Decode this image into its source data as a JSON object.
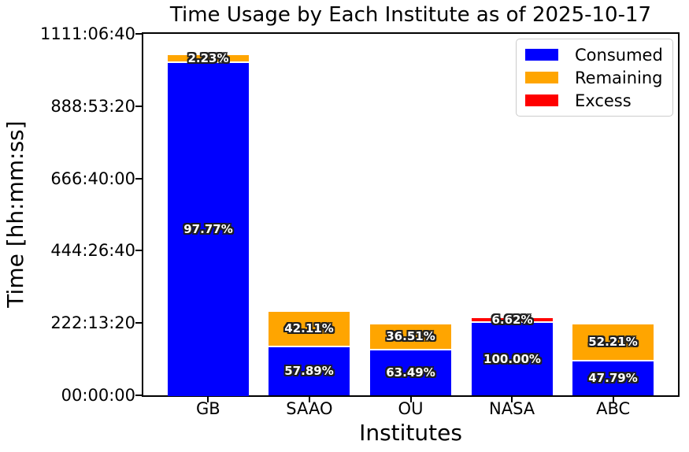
{
  "chart_data": {
    "type": "bar",
    "stacked": true,
    "title": "Time Usage by Each Institute as of 2025-10-17",
    "xlabel": "Institutes",
    "ylabel": "Time [hh:mm:ss]",
    "categories": [
      "GB",
      "SAAO",
      "OU",
      "NASA",
      "ABC"
    ],
    "unit": "seconds",
    "ylim": [
      0,
      4000000
    ],
    "grid": false,
    "legend_position": "upper right",
    "y_ticks": [
      {
        "value": 0,
        "label": "00:00:00"
      },
      {
        "value": 800000,
        "label": "222:13:20"
      },
      {
        "value": 1600000,
        "label": "444:26:40"
      },
      {
        "value": 2400000,
        "label": "666:40:00"
      },
      {
        "value": 3200000,
        "label": "888:53:20"
      },
      {
        "value": 4000000,
        "label": "1111:06:40"
      }
    ],
    "series": [
      {
        "name": "Consumed",
        "color": "#0000ff",
        "values": [
          3683000,
          535000,
          499000,
          803000,
          376000
        ],
        "labels": [
          "97.77%",
          "57.89%",
          "63.49%",
          "100.00%",
          "47.79%"
        ]
      },
      {
        "name": "Remaining",
        "color": "#ffa500",
        "values": [
          84000,
          389000,
          287000,
          0,
          410000
        ],
        "labels": [
          "2.23%",
          "42.11%",
          "36.51%",
          null,
          "52.21%"
        ]
      },
      {
        "name": "Excess",
        "color": "#ff0000",
        "values": [
          0,
          0,
          0,
          53000,
          0
        ],
        "labels": [
          null,
          null,
          null,
          "6.62%",
          null
        ]
      }
    ],
    "bar_label_style": "bold white percentage text with dark outline",
    "colors": {
      "background": "#ffffff",
      "axis": "#000000",
      "bar_label_fill": "#ffffff",
      "bar_label_outline": "#1f1f1f",
      "segment_separator": "#ffffff",
      "legend_border": "#cccccc"
    }
  }
}
